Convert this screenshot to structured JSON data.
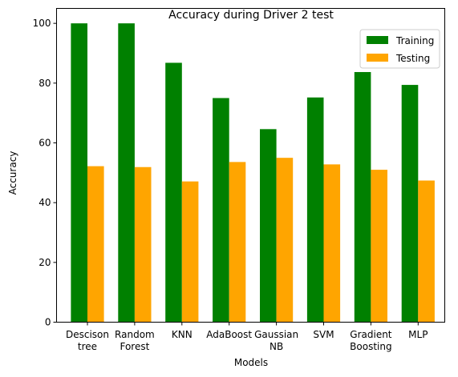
{
  "chart_data": {
    "type": "bar",
    "title": "Accuracy during Driver 2 test",
    "xlabel": "Models",
    "ylabel": "Accuracy",
    "ylim": [
      0,
      105
    ],
    "yticks": [
      "0",
      "20",
      "40",
      "60",
      "80",
      "100"
    ],
    "categories": [
      [
        "Descison",
        "tree"
      ],
      [
        "Random",
        "Forest"
      ],
      [
        "KNN"
      ],
      [
        "AdaBoost"
      ],
      [
        "Gaussian",
        "NB"
      ],
      [
        "SVM"
      ],
      [
        "Gradient",
        "Boosting"
      ],
      [
        "MLP"
      ]
    ],
    "series": [
      {
        "name": "Training",
        "color": "#008000",
        "values": [
          100,
          100,
          86.8,
          75,
          64.6,
          75.2,
          83.7,
          79.4
        ]
      },
      {
        "name": "Testing",
        "color": "#ffa500",
        "values": [
          52.2,
          51.9,
          47.1,
          53.6,
          55,
          52.8,
          51,
          47.4
        ]
      }
    ],
    "legend_position": "top-right",
    "grid": false
  }
}
